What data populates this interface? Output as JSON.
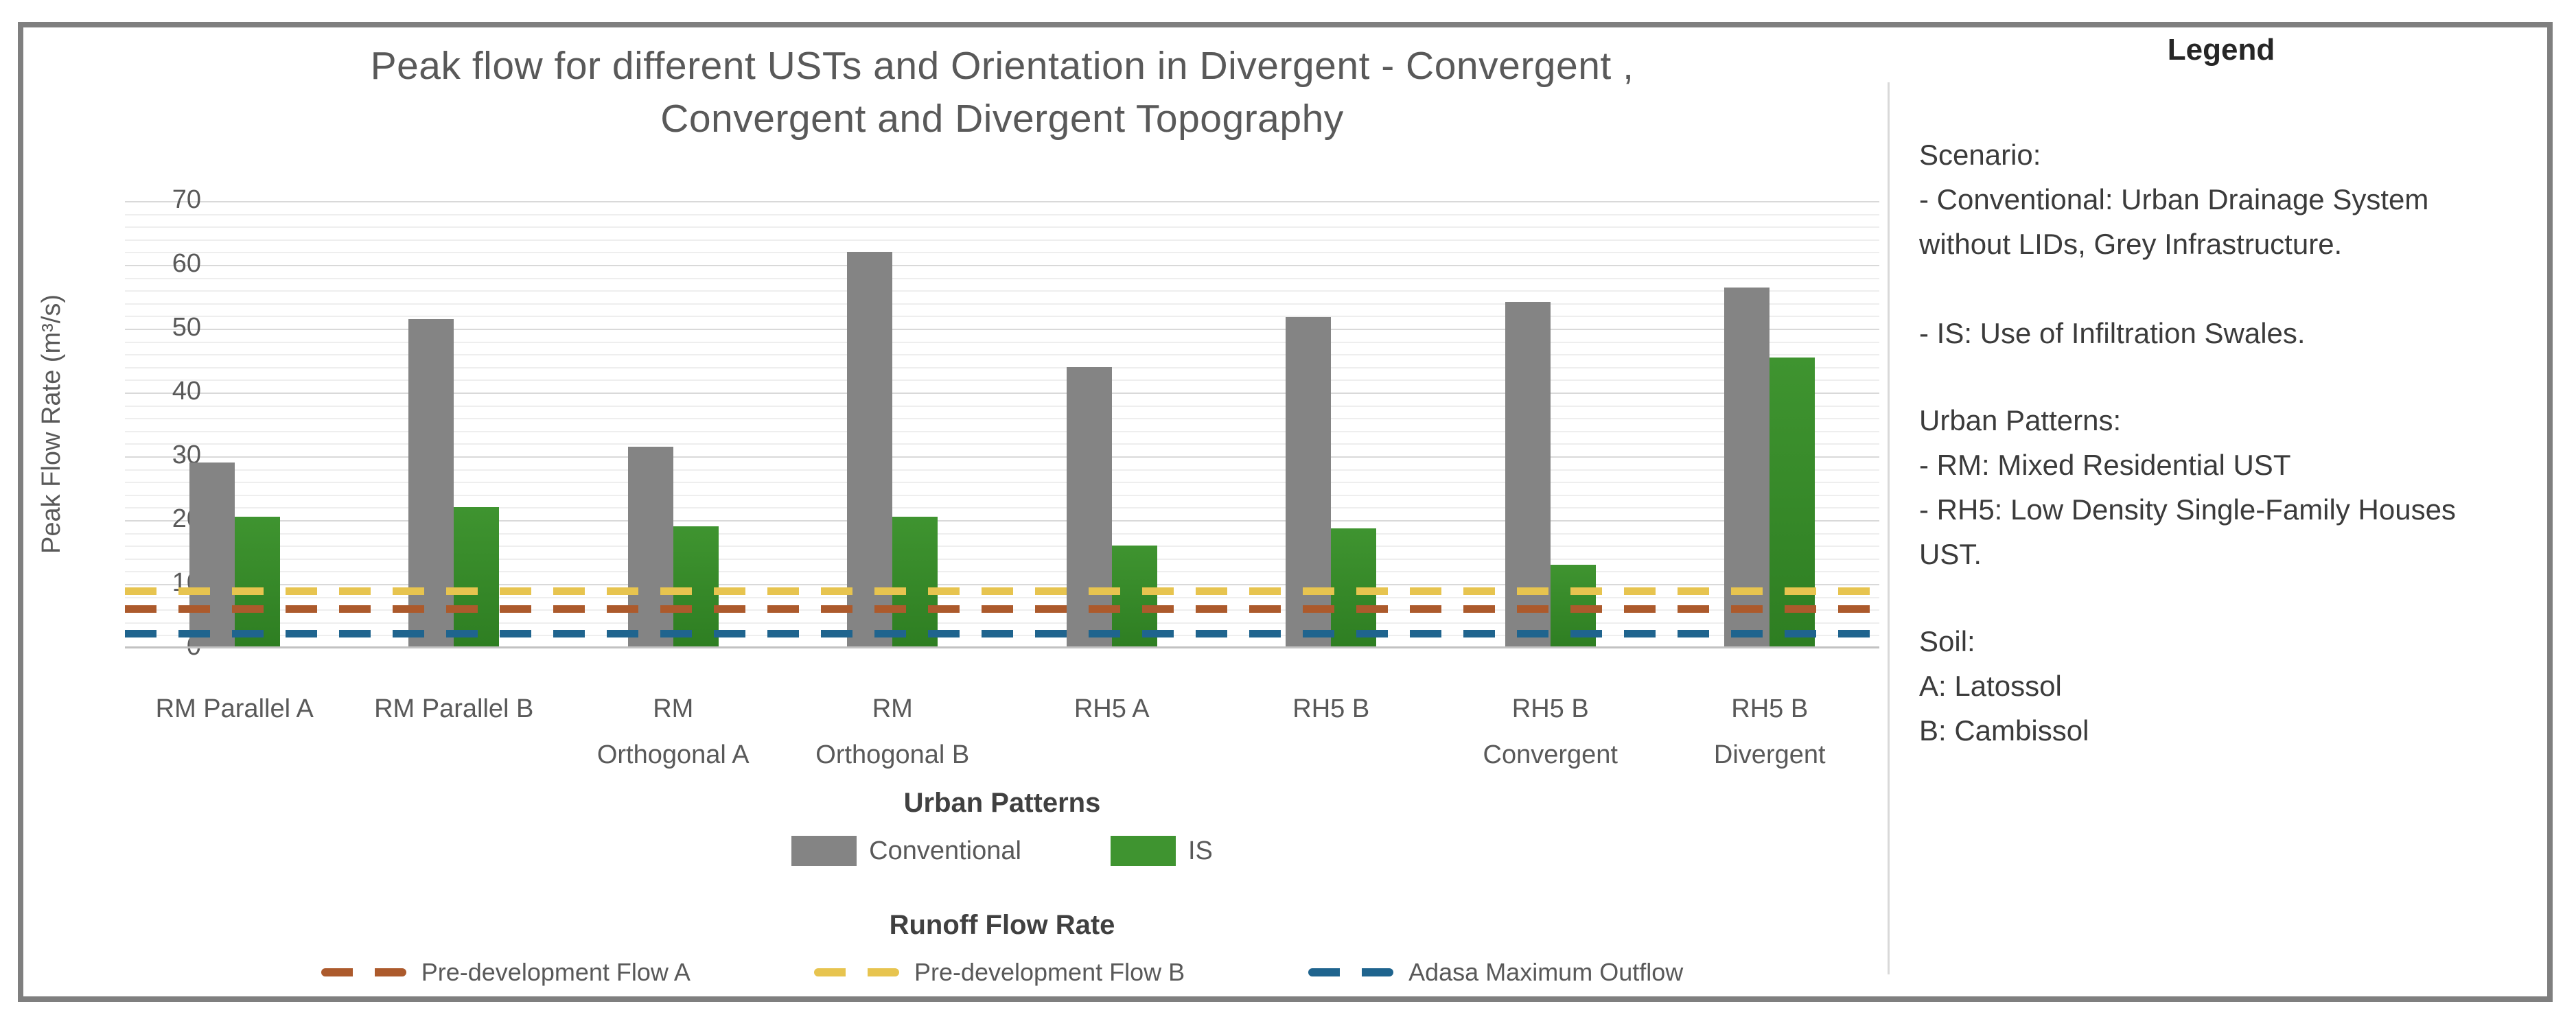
{
  "title": {
    "line1": "Peak flow for different USTs and Orientation in Divergent - Convergent ,",
    "line2": "Convergent and Divergent Topography"
  },
  "chart_data": {
    "type": "bar",
    "title": "Peak flow for different USTs and Orientation in Divergent - Convergent, Convergent and Divergent Topography",
    "xlabel": "Urban Patterns",
    "ylabel": "Peak Flow Rate (m³/s)",
    "ylim": [
      0,
      70
    ],
    "y_tick_step": 10,
    "minor_grid_step": 2,
    "grid": true,
    "legend_position": "bottom",
    "categories": [
      "RM Parallel A",
      "RM Parallel B",
      "RM\nOrthogonal A",
      "RM\nOrthogonal B",
      "RH5 A",
      "RH5 B",
      "RH5 B\nConvergent",
      "RH5 B\nDivergent"
    ],
    "series": [
      {
        "name": "Conventional",
        "color": "#848484",
        "color2": "#848484",
        "values": [
          29,
          51.5,
          31.5,
          62,
          44,
          51.8,
          54.2,
          56.5
        ]
      },
      {
        "name": "IS",
        "color": "#3f9430",
        "color2": "#2e7e22",
        "values": [
          20.5,
          22,
          19,
          20.5,
          16,
          18.7,
          13,
          45.5
        ]
      }
    ],
    "ref_lines_title": "Runoff Flow Rate",
    "ref_lines": [
      {
        "name": "Pre-development Flow A",
        "color": "#ac5a2c",
        "value": 6.1
      },
      {
        "name": "Pre-development Flow B",
        "color": "#e7c44f",
        "value": 8.9
      },
      {
        "name": "Adasa Maximum Outflow",
        "color": "#1f648e",
        "value": 2.3
      }
    ]
  },
  "legend_panel": {
    "title": "Legend",
    "sections": [
      [
        "Scenario:",
        "- Conventional: Urban Drainage System without LIDs, Grey Infrastructure.",
        "",
        "- IS: Use of Infiltration Swales."
      ],
      [
        "Urban Patterns:",
        "- RM: Mixed Residential UST",
        "- RH5: Low Density Single-Family Houses UST."
      ],
      [
        "Soil:",
        "A: Latossol",
        "B: Cambissol"
      ]
    ]
  }
}
